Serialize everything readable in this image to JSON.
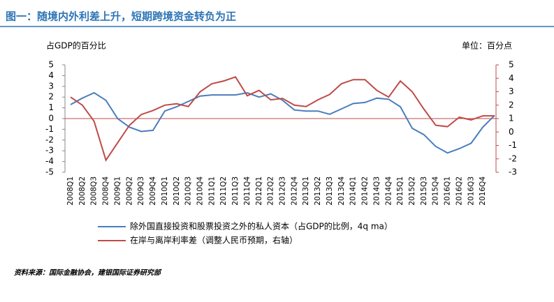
{
  "chart_data": {
    "type": "line",
    "title": "图一：随境内外利差上升，短期跨境资金转负为正",
    "y_axis_label": "占GDP的百分比",
    "y2_axis_label": "单位：百分点",
    "source": "资料来源：国际金融协会，建银国际证券研究部",
    "categories": [
      "2008Q1",
      "2008Q2",
      "2008Q3",
      "2008Q4",
      "2009Q1",
      "2009Q2",
      "2009Q3",
      "2009Q4",
      "2010Q1",
      "2010Q2",
      "2010Q3",
      "2010Q4",
      "2011Q1",
      "2011Q2",
      "2011Q3",
      "2011Q4",
      "2012Q1",
      "2012Q2",
      "2012Q3",
      "2012Q4",
      "2013Q1",
      "2013Q2",
      "2013Q3",
      "2013Q4",
      "2014Q1",
      "2014Q2",
      "2014Q3",
      "2014Q4",
      "2015Q1",
      "2015Q2",
      "2015Q3",
      "2015Q4",
      "2016Q1",
      "2016Q2",
      "2016Q3",
      "2016Q4",
      null
    ],
    "series": [
      {
        "name": "除外国直接投资和股票投资之外的私人资本（占GDP的比例，4q ma）",
        "color": "#4a7ebb",
        "axis": "y",
        "values": [
          1.3,
          1.9,
          2.4,
          1.7,
          0,
          -0.8,
          -1.2,
          -1.1,
          0.7,
          1.1,
          1.6,
          2.1,
          2.2,
          2.2,
          2.2,
          2.4,
          2.0,
          2.3,
          1.7,
          0.8,
          0.7,
          0.7,
          0.4,
          0.9,
          1.4,
          1.5,
          1.9,
          1.8,
          1.1,
          -0.9,
          -1.5,
          -2.6,
          -3.2,
          -2.8,
          -2.3,
          -0.8,
          0.3
        ]
      },
      {
        "name": "在岸与离岸利率差（调整人民币预期，右轴）",
        "color": "#be4b48",
        "axis": "y2",
        "values": [
          2.6,
          2.0,
          0.8,
          -2.1,
          -0.8,
          0.5,
          1.3,
          1.6,
          2.0,
          2.1,
          1.9,
          3.0,
          3.6,
          3.8,
          4.1,
          2.7,
          3.1,
          2.4,
          2.5,
          2.0,
          1.9,
          2.4,
          2.8,
          3.6,
          3.9,
          3.9,
          3.1,
          2.6,
          3.8,
          3.0,
          1.7,
          0.5,
          0.4,
          1.1,
          0.9,
          1.2,
          1.2
        ]
      }
    ],
    "ylim": [
      -5,
      5
    ],
    "yticks": [
      -5,
      -4,
      -3,
      -2,
      -1,
      0,
      1,
      2,
      3,
      4,
      5
    ],
    "y2lim": [
      -3,
      5
    ],
    "y2ticks": [
      -3,
      -2,
      -1,
      0,
      1,
      2,
      3,
      4,
      5
    ]
  }
}
